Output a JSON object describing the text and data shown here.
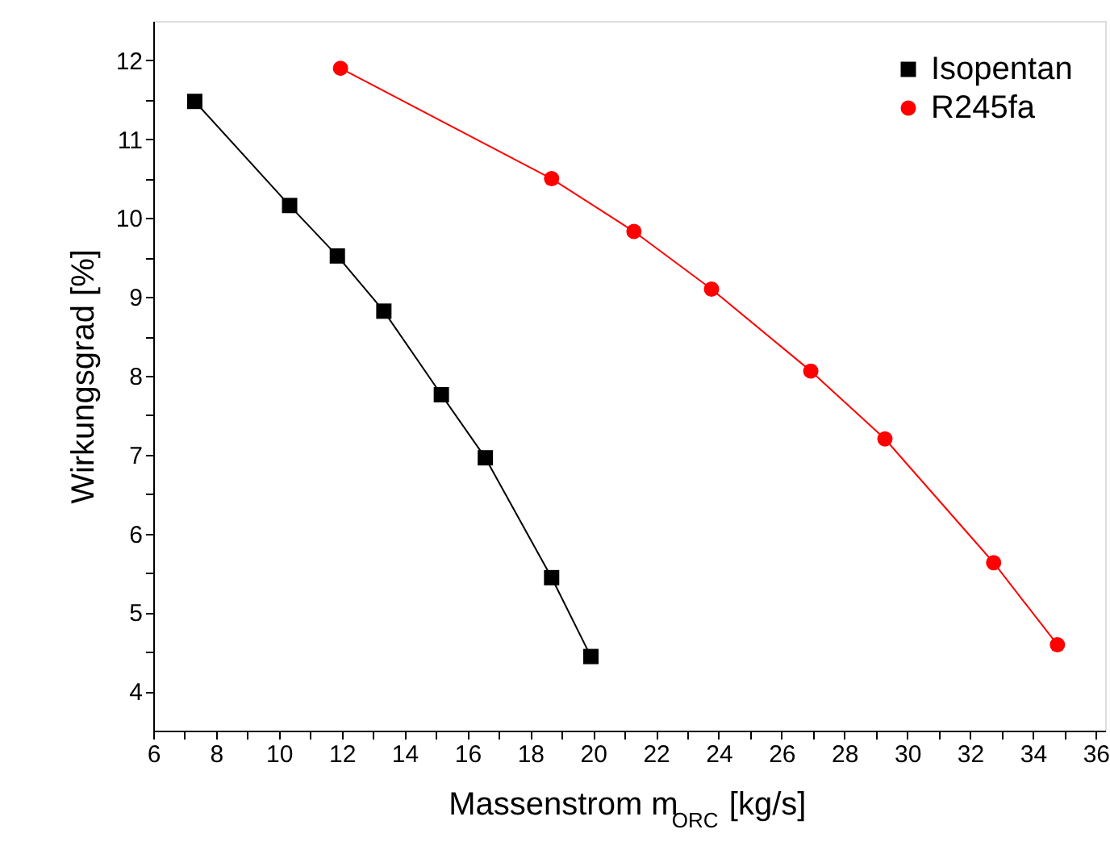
{
  "chart_data": {
    "type": "line",
    "xlabel": "Massenstrom m$_{ORC}$ [kg/s]",
    "ylabel": "Wirkungsgrad [%]",
    "xlim": [
      6,
      36.3
    ],
    "ylim": [
      3.5,
      12.5
    ],
    "xticks": [
      6,
      {
        "value": 7,
        "label": null
      },
      8,
      {
        "value": 9,
        "label": null
      },
      10,
      {
        "value": 11,
        "label": null
      },
      12,
      {
        "value": 13,
        "label": null
      },
      14,
      {
        "value": 15,
        "label": null
      },
      16,
      {
        "value": 17,
        "label": null
      },
      18,
      {
        "value": 19,
        "label": null
      },
      20,
      {
        "value": 21,
        "label": null
      },
      22,
      {
        "value": 23,
        "label": null
      },
      24,
      {
        "value": 25,
        "label": null
      },
      26,
      {
        "value": 27,
        "label": null
      },
      28,
      {
        "value": 29,
        "label": null
      },
      30,
      {
        "value": 31,
        "label": null
      },
      32,
      {
        "value": 33,
        "label": null
      },
      34,
      {
        "value": 35,
        "label": null
      },
      36
    ],
    "yticks": [
      4,
      {
        "value": 4.5,
        "label": null
      },
      5,
      {
        "value": 5.5,
        "label": null
      },
      6,
      {
        "value": 6.5,
        "label": null
      },
      7,
      {
        "value": 7.5,
        "label": null
      },
      8,
      {
        "value": 8.5,
        "label": null
      },
      9,
      {
        "value": 9.5,
        "label": null
      },
      10,
      {
        "value": 10.5,
        "label": null
      },
      11,
      {
        "value": 11.5,
        "label": null
      },
      12
    ],
    "grid": false,
    "legend": "top right",
    "line_style": "solid",
    "series": [
      {
        "name": "Isopentan",
        "color": "#000000",
        "marker": "square",
        "x": [
          7.32,
          10.34,
          11.86,
          13.34,
          15.17,
          16.57,
          18.68,
          19.93
        ],
        "values": [
          11.48,
          10.16,
          9.52,
          8.82,
          7.76,
          6.96,
          5.44,
          4.44
        ]
      },
      {
        "name": "R245fa",
        "color": "#ff0000",
        "marker": "circle",
        "x": [
          11.96,
          18.68,
          21.3,
          23.77,
          26.93,
          29.29,
          32.75,
          34.78
        ],
        "values": [
          11.9,
          10.5,
          9.83,
          9.1,
          8.06,
          7.2,
          5.63,
          4.59
        ]
      }
    ]
  }
}
